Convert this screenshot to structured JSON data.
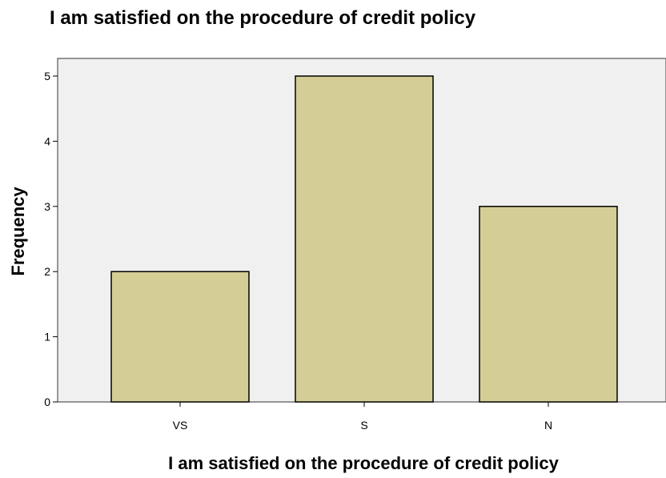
{
  "chart_data": {
    "type": "bar",
    "title": "I am satisfied on the procedure of credit policy",
    "xlabel": "I am satisfied on the procedure of credit policy",
    "ylabel": "Frequency",
    "categories": [
      "VS",
      "S",
      "N"
    ],
    "values": [
      2,
      5,
      3
    ],
    "ylim": [
      0,
      5
    ],
    "yticks": [
      "0",
      "1",
      "2",
      "3",
      "4",
      "5"
    ],
    "grid": false,
    "colors": {
      "bar_fill": "#d4ce96",
      "bar_stroke": "#000000",
      "plot_background": "#f0f0f0"
    }
  }
}
